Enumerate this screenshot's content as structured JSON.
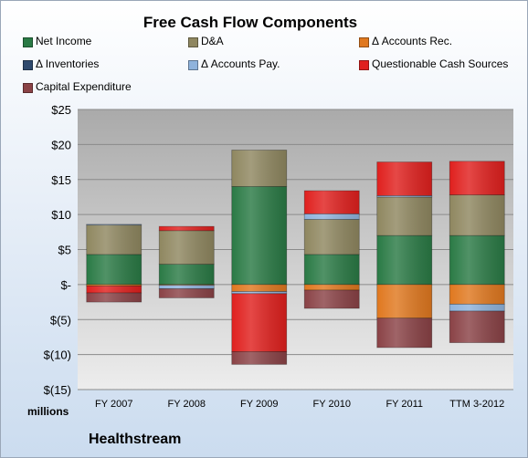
{
  "chart_data": {
    "type": "bar",
    "stacked": true,
    "title": "Free Cash Flow Components",
    "company": "Healthstream",
    "unit_label": "millions",
    "ylim": [
      -15,
      25
    ],
    "yticks": [
      -15,
      -10,
      -5,
      0,
      5,
      10,
      15,
      20,
      25
    ],
    "ytick_labels": [
      "$(15)",
      "$(10)",
      "$(5)",
      "$-",
      "$5",
      "$10",
      "$15",
      "$20",
      "$25"
    ],
    "grid": true,
    "legend_position": "top",
    "categories": [
      "FY 2007",
      "FY 2008",
      "FY 2009",
      "FY 2010",
      "FY 2011",
      "TTM 3-2012"
    ],
    "series": [
      {
        "name": "Net Income",
        "color": "#2a7a45",
        "values": [
          4.3,
          2.9,
          14.0,
          4.3,
          7.0,
          7.0
        ]
      },
      {
        "name": "D&A",
        "color": "#8f8760",
        "values": [
          4.2,
          4.8,
          5.2,
          5.0,
          5.5,
          5.8
        ]
      },
      {
        "name": "Δ Accounts Rec.",
        "color": "#e0781f",
        "values": [
          -0.2,
          -0.1,
          -1.0,
          -0.8,
          -4.8,
          -2.8
        ]
      },
      {
        "name": "Δ Inventories",
        "color": "#2f4a6e",
        "values": [
          0,
          0,
          0,
          0,
          0,
          0
        ]
      },
      {
        "name": "Δ Accounts Pay.",
        "color": "#8fb3dc",
        "values": [
          0.1,
          -0.5,
          -0.3,
          0.8,
          0.2,
          -1.0
        ]
      },
      {
        "name": "Questionable Cash Sources",
        "color": "#e0201e",
        "values": [
          -1.0,
          0.6,
          -8.3,
          3.3,
          4.8,
          4.8
        ]
      },
      {
        "name": "Capital Expenditure",
        "color": "#8a4246",
        "values": [
          -1.3,
          -1.3,
          -1.8,
          -2.6,
          -4.2,
          -4.5
        ]
      }
    ]
  }
}
